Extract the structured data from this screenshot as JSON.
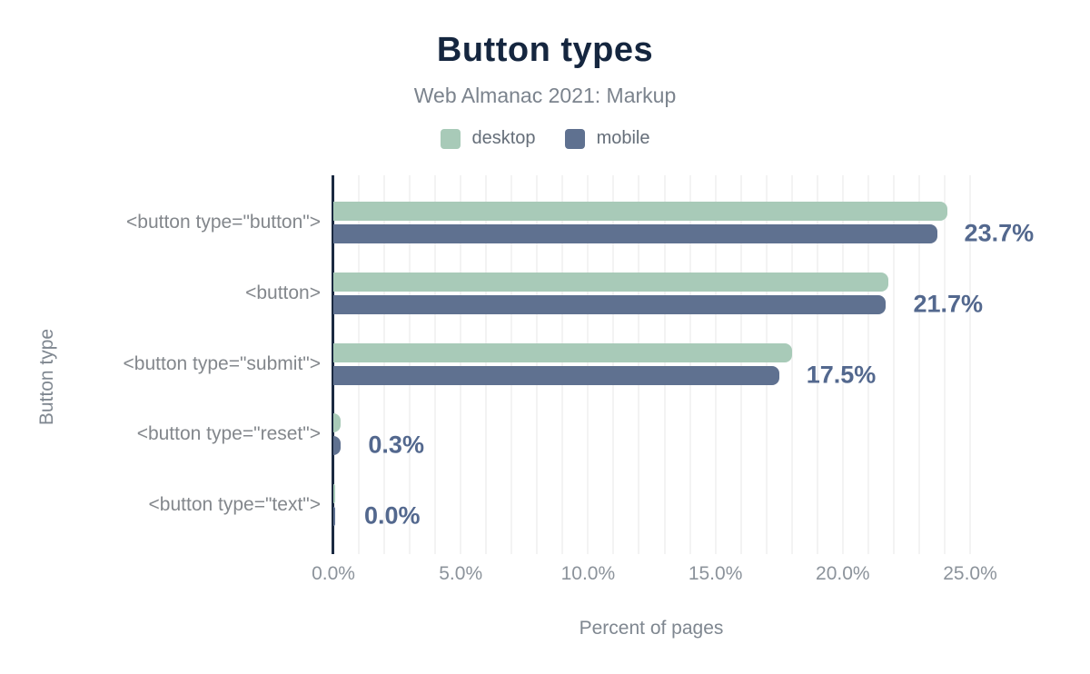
{
  "title": "Button types",
  "subtitle": "Web Almanac 2021: Markup",
  "legend": [
    {
      "label": "desktop",
      "color": "#a8cab8"
    },
    {
      "label": "mobile",
      "color": "#5f7190"
    }
  ],
  "xlabel": "Percent of pages",
  "ylabel": "Button type",
  "colors": {
    "title": "#15263f",
    "subtitle": "#7b838d",
    "axis_line": "#1b2a41",
    "gridline": "#f3f3f3",
    "value_label": "#53688e",
    "category_label": "#83878c",
    "tick_label": "#8c939b",
    "desktop_bar": "#a8cab8",
    "mobile_bar": "#5f7190"
  },
  "chart_data": {
    "type": "bar",
    "orientation": "horizontal",
    "title": "Button types",
    "subtitle": "Web Almanac 2021: Markup",
    "categories": [
      "<button type=\"button\">",
      "<button>",
      "<button type=\"submit\">",
      "<button type=\"reset\">",
      "<button type=\"text\">"
    ],
    "series": [
      {
        "name": "desktop",
        "color": "#a8cab8",
        "values": [
          24.1,
          21.8,
          18.0,
          0.3,
          0.0
        ]
      },
      {
        "name": "mobile",
        "color": "#5f7190",
        "values": [
          23.7,
          21.7,
          17.5,
          0.3,
          0.0
        ]
      }
    ],
    "value_labels": [
      "23.7%",
      "21.7%",
      "17.5%",
      "0.3%",
      "0.0%"
    ],
    "x_ticks": [
      "0.0%",
      "5.0%",
      "10.0%",
      "15.0%",
      "20.0%",
      "25.0%"
    ],
    "xlabel": "Percent of pages",
    "ylabel": "Button type",
    "xlim": [
      0,
      25
    ],
    "x_tick_step": 5,
    "minor_grid_step": 1,
    "grid": true,
    "legend_position": "top"
  }
}
